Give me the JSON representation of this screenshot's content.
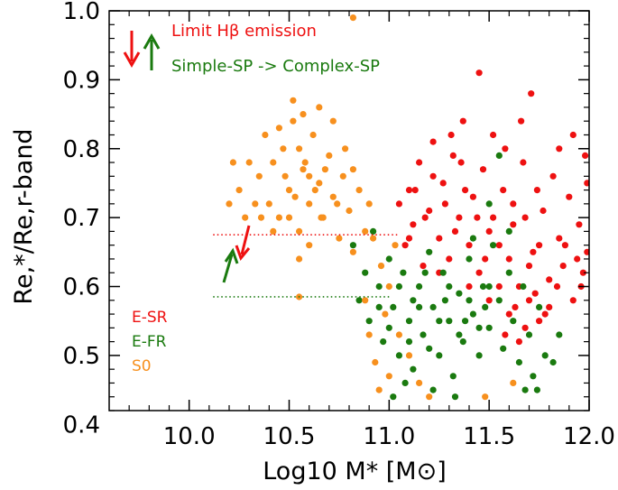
{
  "chart_data": {
    "type": "scatter",
    "xlabel": "Log10 M* [M⊙]",
    "ylabel": "Re,*/Re,r-band",
    "xlim": [
      9.6,
      12.0
    ],
    "ylim": [
      0.42,
      1.0
    ],
    "xticks": [
      "10.0",
      "10.5",
      "11.0",
      "11.5",
      "12.0"
    ],
    "yticks": [
      "0.4",
      "0.5",
      "0.6",
      "0.7",
      "0.8",
      "0.9",
      "1.0"
    ],
    "annotations": {
      "line1": "Limit Hβ emission",
      "line2": "Simple-SP -> Complex-SP"
    },
    "reference_lines": [
      {
        "y": 0.675,
        "x_start": 10.12,
        "x_end": 11.05,
        "color": "#ee1111",
        "style": "dotted"
      },
      {
        "y": 0.585,
        "x_start": 10.12,
        "x_end": 11.0,
        "color": "#1a7a0f",
        "style": "dotted"
      }
    ],
    "series": [
      {
        "name": "E-SR",
        "color": "#ee1111",
        "points": [
          [
            11.05,
            0.72
          ],
          [
            11.08,
            0.66
          ],
          [
            11.1,
            0.74
          ],
          [
            11.12,
            0.69
          ],
          [
            11.15,
            0.78
          ],
          [
            11.17,
            0.63
          ],
          [
            11.2,
            0.71
          ],
          [
            11.22,
            0.81
          ],
          [
            11.25,
            0.67
          ],
          [
            11.27,
            0.75
          ],
          [
            11.3,
            0.64
          ],
          [
            11.32,
            0.79
          ],
          [
            11.35,
            0.7
          ],
          [
            11.37,
            0.84
          ],
          [
            11.4,
            0.66
          ],
          [
            11.42,
            0.73
          ],
          [
            11.45,
            0.62
          ],
          [
            11.47,
            0.77
          ],
          [
            11.5,
            0.68
          ],
          [
            11.52,
            0.82
          ],
          [
            11.55,
            0.6
          ],
          [
            11.57,
            0.74
          ],
          [
            11.6,
            0.56
          ],
          [
            11.62,
            0.69
          ],
          [
            11.65,
            0.52
          ],
          [
            11.67,
            0.78
          ],
          [
            11.7,
            0.58
          ],
          [
            11.72,
            0.65
          ],
          [
            11.75,
            0.55
          ],
          [
            11.77,
            0.71
          ],
          [
            11.8,
            0.61
          ],
          [
            11.82,
            0.76
          ],
          [
            11.85,
            0.67
          ],
          [
            11.87,
            0.63
          ],
          [
            11.9,
            0.73
          ],
          [
            11.92,
            0.58
          ],
          [
            11.95,
            0.69
          ],
          [
            11.97,
            0.62
          ],
          [
            11.99,
            0.75
          ],
          [
            11.99,
            0.65
          ],
          [
            11.58,
            0.53
          ],
          [
            11.63,
            0.57
          ],
          [
            11.68,
            0.54
          ],
          [
            11.73,
            0.59
          ],
          [
            11.78,
            0.56
          ],
          [
            11.6,
            0.64
          ],
          [
            11.65,
            0.6
          ],
          [
            11.7,
            0.63
          ],
          [
            11.75,
            0.66
          ],
          [
            11.8,
            0.57
          ],
          [
            11.55,
            0.66
          ],
          [
            11.62,
            0.72
          ],
          [
            11.68,
            0.7
          ],
          [
            11.74,
            0.74
          ],
          [
            11.52,
            0.7
          ],
          [
            11.48,
            0.64
          ],
          [
            11.44,
            0.7
          ],
          [
            11.38,
            0.74
          ],
          [
            11.33,
            0.68
          ],
          [
            11.28,
            0.72
          ],
          [
            11.22,
            0.76
          ],
          [
            11.18,
            0.7
          ],
          [
            11.13,
            0.74
          ],
          [
            11.58,
            0.8
          ],
          [
            11.66,
            0.84
          ],
          [
            11.71,
            0.88
          ],
          [
            11.45,
            0.91
          ],
          [
            11.85,
            0.8
          ],
          [
            11.92,
            0.82
          ],
          [
            11.98,
            0.79
          ],
          [
            11.1,
            0.67
          ],
          [
            11.25,
            0.62
          ],
          [
            11.4,
            0.6
          ],
          [
            11.5,
            0.58
          ],
          [
            11.84,
            0.6
          ],
          [
            11.88,
            0.66
          ],
          [
            11.94,
            0.64
          ],
          [
            11.96,
            0.6
          ],
          [
            11.36,
            0.78
          ],
          [
            11.31,
            0.82
          ]
        ]
      },
      {
        "name": "E-FR",
        "color": "#1a7a0f",
        "points": [
          [
            10.82,
            0.66
          ],
          [
            10.85,
            0.58
          ],
          [
            10.88,
            0.62
          ],
          [
            10.9,
            0.55
          ],
          [
            10.92,
            0.68
          ],
          [
            10.95,
            0.6
          ],
          [
            10.97,
            0.52
          ],
          [
            11.0,
            0.64
          ],
          [
            11.02,
            0.57
          ],
          [
            11.05,
            0.5
          ],
          [
            11.07,
            0.62
          ],
          [
            11.1,
            0.55
          ],
          [
            11.12,
            0.48
          ],
          [
            11.15,
            0.6
          ],
          [
            11.17,
            0.53
          ],
          [
            11.2,
            0.65
          ],
          [
            11.22,
            0.57
          ],
          [
            11.25,
            0.5
          ],
          [
            11.27,
            0.62
          ],
          [
            11.3,
            0.55
          ],
          [
            11.32,
            0.47
          ],
          [
            11.35,
            0.59
          ],
          [
            11.37,
            0.52
          ],
          [
            11.4,
            0.64
          ],
          [
            11.42,
            0.56
          ],
          [
            11.45,
            0.5
          ],
          [
            11.47,
            0.6
          ],
          [
            11.5,
            0.54
          ],
          [
            11.52,
            0.66
          ],
          [
            11.55,
            0.58
          ],
          [
            11.57,
            0.51
          ],
          [
            11.6,
            0.62
          ],
          [
            11.62,
            0.55
          ],
          [
            11.65,
            0.49
          ],
          [
            11.67,
            0.6
          ],
          [
            11.7,
            0.53
          ],
          [
            11.72,
            0.47
          ],
          [
            11.75,
            0.57
          ],
          [
            11.78,
            0.5
          ],
          [
            11.82,
            0.49
          ],
          [
            10.95,
            0.57
          ],
          [
            11.0,
            0.54
          ],
          [
            11.05,
            0.6
          ],
          [
            11.1,
            0.52
          ],
          [
            11.15,
            0.57
          ],
          [
            11.2,
            0.51
          ],
          [
            11.25,
            0.55
          ],
          [
            11.3,
            0.6
          ],
          [
            11.35,
            0.53
          ],
          [
            11.4,
            0.58
          ],
          [
            11.45,
            0.54
          ],
          [
            11.5,
            0.6
          ],
          [
            11.12,
            0.58
          ],
          [
            11.18,
            0.62
          ],
          [
            11.28,
            0.58
          ],
          [
            11.38,
            0.55
          ],
          [
            11.48,
            0.57
          ],
          [
            11.08,
            0.46
          ],
          [
            11.22,
            0.45
          ],
          [
            11.33,
            0.44
          ],
          [
            11.55,
            0.79
          ],
          [
            11.5,
            0.72
          ],
          [
            11.42,
            0.67
          ],
          [
            11.6,
            0.68
          ],
          [
            11.85,
            0.53
          ],
          [
            11.68,
            0.45
          ],
          [
            11.74,
            0.45
          ],
          [
            11.02,
            0.44
          ]
        ]
      },
      {
        "name": "S0",
        "color": "#f7901e",
        "points": [
          [
            10.35,
            0.76
          ],
          [
            10.38,
            0.82
          ],
          [
            10.4,
            0.72
          ],
          [
            10.42,
            0.78
          ],
          [
            10.45,
            0.7
          ],
          [
            10.47,
            0.8
          ],
          [
            10.5,
            0.74
          ],
          [
            10.52,
            0.84
          ],
          [
            10.55,
            0.68
          ],
          [
            10.57,
            0.77
          ],
          [
            10.6,
            0.72
          ],
          [
            10.62,
            0.82
          ],
          [
            10.65,
            0.75
          ],
          [
            10.67,
            0.7
          ],
          [
            10.7,
            0.79
          ],
          [
            10.72,
            0.73
          ],
          [
            10.75,
            0.67
          ],
          [
            10.77,
            0.76
          ],
          [
            10.8,
            0.71
          ],
          [
            10.82,
            0.65
          ],
          [
            10.85,
            0.74
          ],
          [
            10.88,
            0.68
          ],
          [
            10.48,
            0.76
          ],
          [
            10.53,
            0.73
          ],
          [
            10.58,
            0.78
          ],
          [
            10.63,
            0.74
          ],
          [
            10.68,
            0.77
          ],
          [
            10.5,
            0.7
          ],
          [
            10.55,
            0.8
          ],
          [
            10.6,
            0.76
          ],
          [
            10.52,
            0.87
          ],
          [
            10.57,
            0.85
          ],
          [
            10.45,
            0.83
          ],
          [
            10.65,
            0.86
          ],
          [
            10.25,
            0.74
          ],
          [
            10.28,
            0.7
          ],
          [
            10.3,
            0.78
          ],
          [
            10.33,
            0.72
          ],
          [
            10.22,
            0.78
          ],
          [
            10.2,
            0.72
          ],
          [
            10.78,
            0.8
          ],
          [
            10.72,
            0.84
          ],
          [
            10.82,
            0.77
          ],
          [
            10.9,
            0.72
          ],
          [
            10.92,
            0.67
          ],
          [
            10.96,
            0.63
          ],
          [
            11.0,
            0.6
          ],
          [
            11.03,
            0.66
          ],
          [
            10.88,
            0.58
          ],
          [
            10.9,
            0.53
          ],
          [
            10.93,
            0.49
          ],
          [
            10.98,
            0.56
          ],
          [
            11.0,
            0.47
          ],
          [
            10.95,
            0.45
          ],
          [
            11.05,
            0.53
          ],
          [
            11.1,
            0.5
          ],
          [
            11.15,
            0.46
          ],
          [
            11.2,
            0.44
          ],
          [
            10.55,
            0.64
          ],
          [
            10.6,
            0.66
          ],
          [
            10.82,
            0.99
          ],
          [
            10.55,
            0.585
          ],
          [
            11.48,
            0.44
          ],
          [
            11.62,
            0.46
          ],
          [
            10.42,
            0.68
          ],
          [
            10.66,
            0.7
          ],
          [
            10.74,
            0.72
          ],
          [
            10.36,
            0.7
          ]
        ]
      }
    ],
    "legend": [
      {
        "label": "E-SR",
        "color": "#ee1111"
      },
      {
        "label": "E-FR",
        "color": "#1a7a0f"
      },
      {
        "label": "S0",
        "color": "#f7901e"
      }
    ]
  }
}
